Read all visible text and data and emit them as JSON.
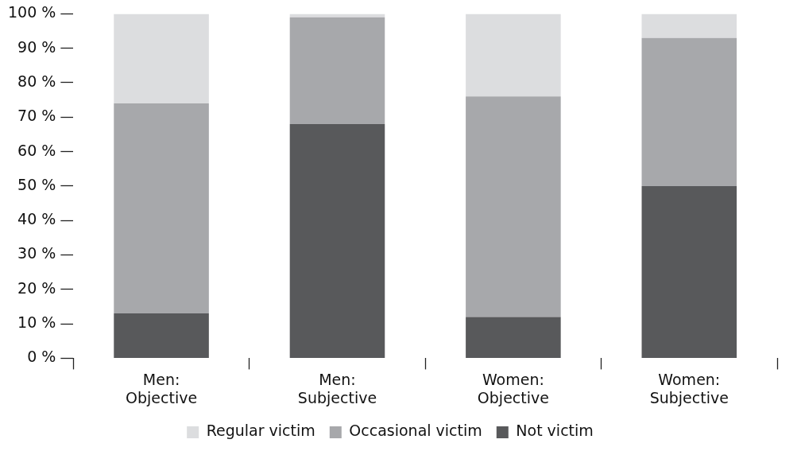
{
  "chart_data": {
    "type": "bar",
    "stacked": true,
    "categories": [
      "Men: Objective",
      "Men: Subjective",
      "Women: Objective",
      "Women: Subjective"
    ],
    "series": [
      {
        "name": "Not victim",
        "color": "#58595b",
        "values": [
          13,
          68,
          12,
          50
        ]
      },
      {
        "name": "Occasional victim",
        "color": "#a7a8ab",
        "values": [
          61,
          31,
          64,
          43
        ]
      },
      {
        "name": "Regular victim",
        "color": "#dcdddf",
        "values": [
          26,
          1,
          24,
          7
        ]
      }
    ],
    "ylim": [
      0,
      100
    ],
    "yticks": [
      {
        "value": 0,
        "label": "0 %"
      },
      {
        "value": 10,
        "label": "10 %"
      },
      {
        "value": 20,
        "label": "20 %"
      },
      {
        "value": 30,
        "label": "30 %"
      },
      {
        "value": 40,
        "label": "40 %"
      },
      {
        "value": 50,
        "label": "50 %"
      },
      {
        "value": 60,
        "label": "60 %"
      },
      {
        "value": 70,
        "label": "70 %"
      },
      {
        "value": 80,
        "label": "80 %"
      },
      {
        "value": 90,
        "label": "90 %"
      },
      {
        "value": 100,
        "label": "100 %"
      }
    ],
    "grid": false,
    "legend": "bottom"
  }
}
